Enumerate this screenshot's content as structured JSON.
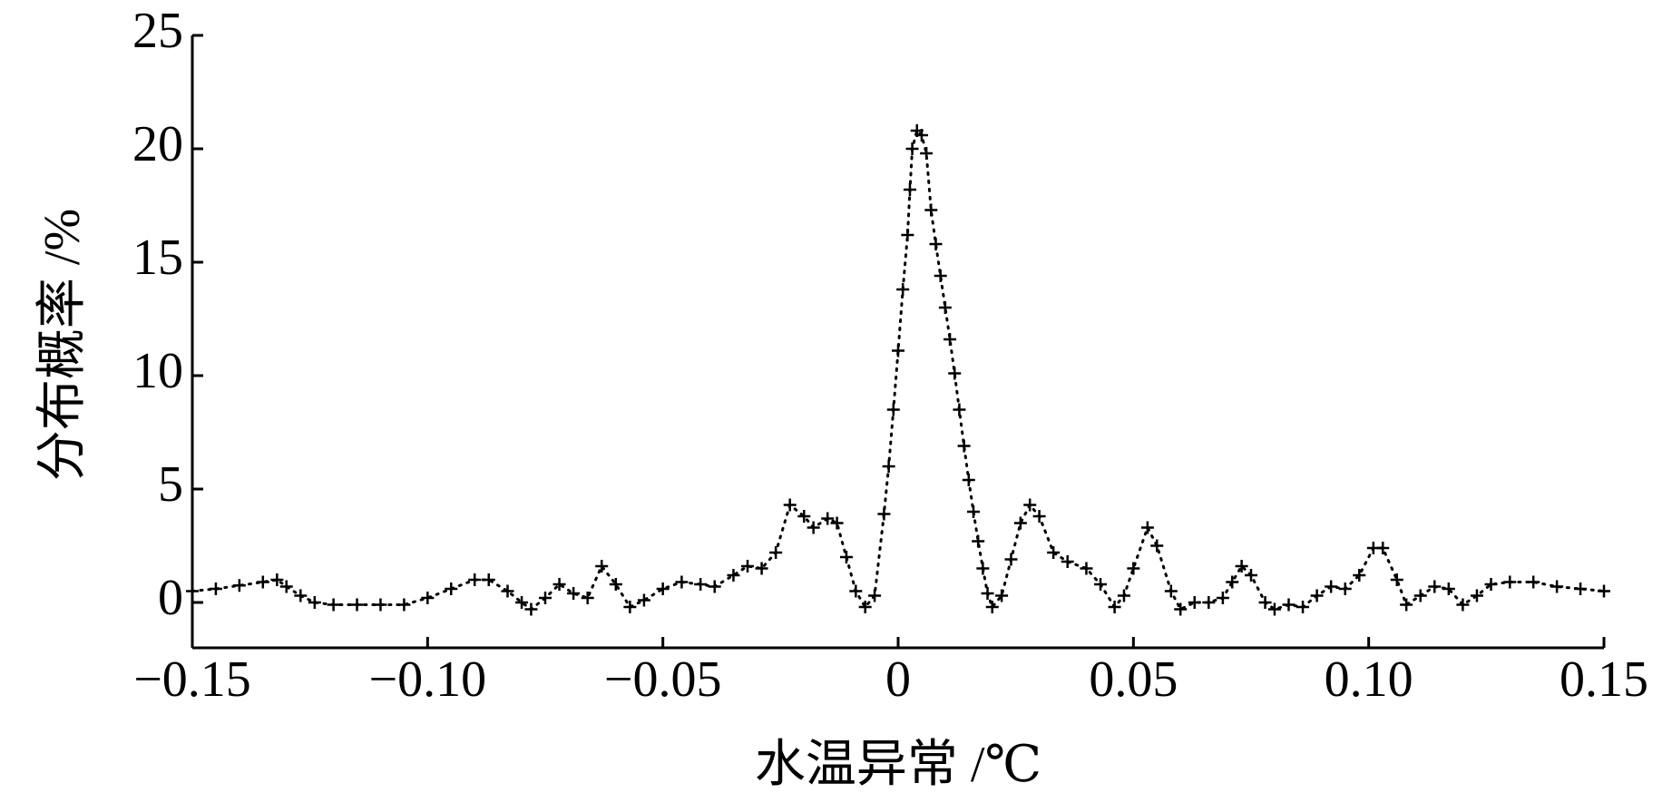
{
  "chart_data": {
    "type": "line",
    "xlabel": "水温异常 /℃",
    "ylabel": "分布概率 /%",
    "xlim": [
      -0.15,
      0.15
    ],
    "ylim": [
      -2,
      25
    ],
    "xticks": [
      {
        "value": -0.15,
        "label": "−0.15"
      },
      {
        "value": -0.1,
        "label": "−0.10"
      },
      {
        "value": -0.05,
        "label": "−0.05"
      },
      0,
      0.05,
      {
        "value": 0.1,
        "label": "0.10"
      },
      {
        "value": 0.15,
        "label": "0.15"
      }
    ],
    "yticks": [
      0,
      5,
      10,
      15,
      20,
      25
    ],
    "color": "#000000",
    "marker": "+",
    "line_style": "dotted",
    "x": [
      -0.15,
      -0.145,
      -0.14,
      -0.135,
      -0.132,
      -0.13,
      -0.127,
      -0.124,
      -0.12,
      -0.115,
      -0.11,
      -0.105,
      -0.1,
      -0.095,
      -0.09,
      -0.087,
      -0.083,
      -0.08,
      -0.078,
      -0.075,
      -0.072,
      -0.069,
      -0.066,
      -0.063,
      -0.06,
      -0.057,
      -0.054,
      -0.05,
      -0.046,
      -0.042,
      -0.039,
      -0.035,
      -0.032,
      -0.029,
      -0.026,
      -0.023,
      -0.02,
      -0.018,
      -0.015,
      -0.013,
      -0.011,
      -0.009,
      -0.007,
      -0.005,
      -0.003,
      -0.002,
      -0.001,
      0,
      0.001,
      0.002,
      0.0025,
      0.003,
      0.004,
      0.005,
      0.006,
      0.007,
      0.008,
      0.009,
      0.01,
      0.011,
      0.012,
      0.013,
      0.014,
      0.015,
      0.016,
      0.017,
      0.018,
      0.019,
      0.02,
      0.022,
      0.024,
      0.026,
      0.028,
      0.03,
      0.033,
      0.036,
      0.04,
      0.043,
      0.046,
      0.048,
      0.05,
      0.053,
      0.055,
      0.058,
      0.06,
      0.063,
      0.066,
      0.069,
      0.071,
      0.073,
      0.075,
      0.078,
      0.08,
      0.083,
      0.086,
      0.089,
      0.092,
      0.095,
      0.098,
      0.101,
      0.103,
      0.106,
      0.108,
      0.111,
      0.114,
      0.117,
      0.12,
      0.123,
      0.126,
      0.13,
      0.135,
      0.14,
      0.145,
      0.15
    ],
    "values": [
      0.5,
      0.6,
      0.75,
      0.9,
      1.0,
      0.7,
      0.3,
      0.0,
      -0.1,
      -0.1,
      -0.1,
      -0.1,
      0.2,
      0.6,
      1.0,
      1.0,
      0.5,
      0.0,
      -0.3,
      0.2,
      0.8,
      0.4,
      0.2,
      1.6,
      0.8,
      -0.2,
      0.1,
      0.6,
      0.9,
      0.8,
      0.7,
      1.2,
      1.6,
      1.5,
      2.2,
      4.3,
      3.8,
      3.3,
      3.7,
      3.5,
      2.0,
      0.5,
      -0.2,
      0.3,
      3.9,
      6.0,
      8.5,
      11.1,
      13.8,
      16.2,
      18.2,
      20.0,
      20.8,
      20.6,
      19.8,
      17.3,
      15.8,
      14.4,
      13.0,
      11.6,
      10.1,
      8.5,
      6.9,
      5.4,
      4.0,
      2.7,
      1.5,
      0.4,
      -0.2,
      0.3,
      1.9,
      3.5,
      4.3,
      3.8,
      2.2,
      1.8,
      1.5,
      0.8,
      -0.2,
      0.3,
      1.5,
      3.3,
      2.5,
      0.5,
      -0.3,
      0.0,
      0.0,
      0.2,
      0.9,
      1.6,
      1.2,
      0.0,
      -0.3,
      -0.1,
      -0.2,
      0.3,
      0.7,
      0.6,
      1.2,
      2.4,
      2.4,
      1.0,
      -0.1,
      0.3,
      0.7,
      0.6,
      -0.1,
      0.3,
      0.8,
      0.9,
      0.9,
      0.7,
      0.6,
      0.5
    ]
  }
}
